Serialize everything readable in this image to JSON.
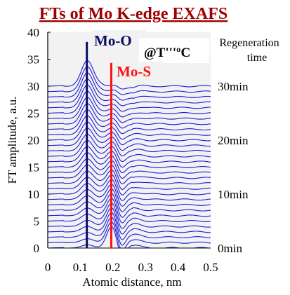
{
  "chart_data": {
    "type": "line",
    "title": "FTs of Mo K-edge EXAFS",
    "xlabel": "Atomic distance, nm",
    "ylabel": "FT amplitude, a.u.",
    "xlim": [
      0,
      0.5
    ],
    "ylim": [
      0,
      40
    ],
    "x_ticks": [
      "0",
      "0.1",
      "0.2",
      "0.3",
      "0.4",
      "0.5"
    ],
    "y_ticks": [
      "0",
      "5",
      "10",
      "15",
      "20",
      "25",
      "30",
      "35",
      "40"
    ],
    "series_color": "#1a1adb",
    "series_count": 31,
    "curve_offset_step": 1,
    "plot_background": "#f2f2f2",
    "reference_lines": [
      {
        "label": "Mo-O",
        "x": 0.12,
        "y_top": 38.2,
        "color": "#0a0a66"
      },
      {
        "label": "Mo-S",
        "x": 0.195,
        "y_top": 34.3,
        "color": "#ff1010"
      }
    ],
    "annotation": "@T'''ºC",
    "right_label_title_line1": "Regeneration",
    "right_label_title_line2": "time",
    "right_labels": [
      {
        "text": "30min",
        "y": 30
      },
      {
        "text": "20min",
        "y": 20
      },
      {
        "text": "10min",
        "y": 10
      },
      {
        "text": "0min",
        "y": 0
      }
    ]
  }
}
